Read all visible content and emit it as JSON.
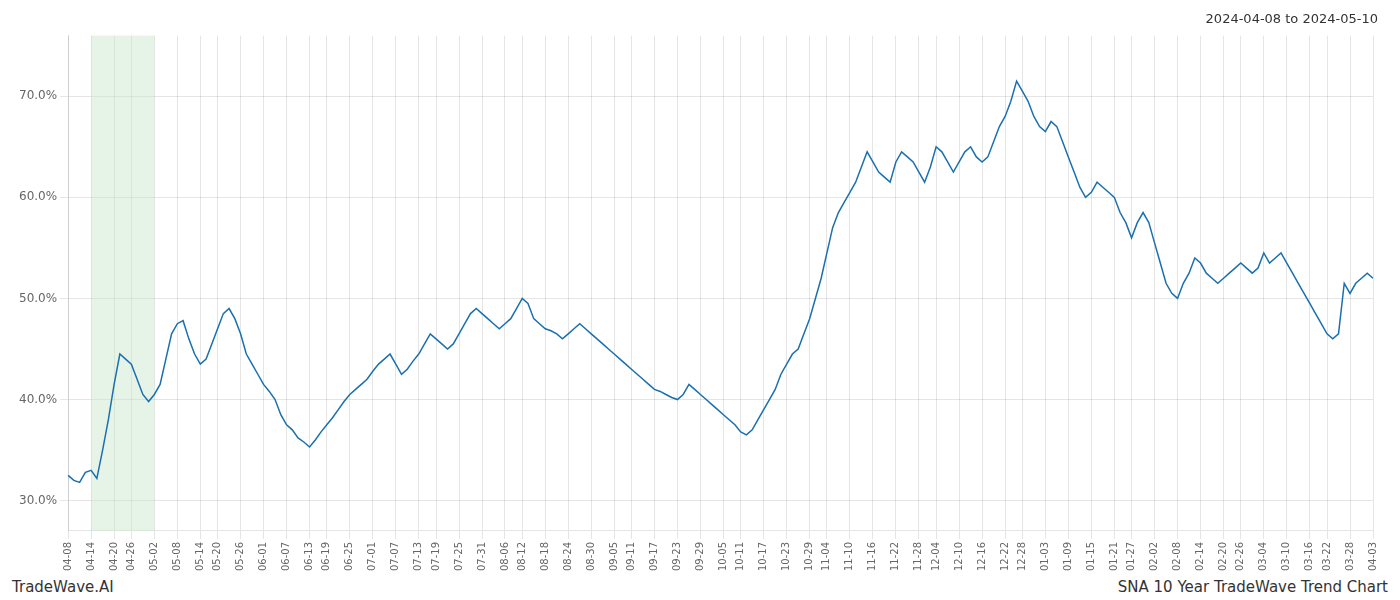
{
  "chart_data": {
    "type": "line",
    "title": "2024-04-08 to 2024-05-10",
    "annotations": [
      "TradeWave.AI",
      "SNA 10 Year TradeWave Trend Chart"
    ],
    "color": "#1a6faf",
    "grid": true,
    "ylim": [
      27.0,
      76.0
    ],
    "yticks": [
      {
        "value": 30.0,
        "label": "30.0%"
      },
      {
        "value": 40.0,
        "label": "40.0%"
      },
      {
        "value": 50.0,
        "label": "50.0%"
      },
      {
        "value": 60.0,
        "label": "60.0%"
      },
      {
        "value": 70.0,
        "label": "70.0%"
      }
    ],
    "shaded_region": {
      "from": "04-14",
      "to": "05-02",
      "color": "#c8e6c9"
    },
    "categories": [
      "04-08",
      null,
      null,
      null,
      "04-14",
      null,
      null,
      null,
      "04-20",
      null,
      null,
      "04-26",
      null,
      null,
      null,
      "05-02",
      null,
      null,
      null,
      "05-08",
      null,
      null,
      null,
      "05-14",
      null,
      null,
      "05-20",
      null,
      null,
      null,
      "05-26",
      null,
      null,
      null,
      "06-01",
      null,
      null,
      null,
      "06-07",
      null,
      null,
      null,
      "06-13",
      null,
      null,
      "06-19",
      null,
      null,
      null,
      "06-25",
      null,
      null,
      null,
      "07-01",
      null,
      null,
      null,
      "07-07",
      null,
      null,
      null,
      "07-13",
      null,
      null,
      "07-19",
      null,
      null,
      null,
      "07-25",
      null,
      null,
      null,
      "07-31",
      null,
      null,
      null,
      "08-06",
      null,
      null,
      "08-12",
      null,
      null,
      null,
      "08-18",
      null,
      null,
      null,
      "08-24",
      null,
      null,
      null,
      "08-30",
      null,
      null,
      null,
      "09-05",
      null,
      null,
      "09-11",
      null,
      null,
      null,
      "09-17",
      null,
      null,
      null,
      "09-23",
      null,
      null,
      null,
      "09-29",
      null,
      null,
      null,
      "10-05",
      null,
      null,
      "10-11",
      null,
      null,
      null,
      "10-17",
      null,
      null,
      null,
      "10-23",
      null,
      null,
      null,
      "10-29",
      null,
      null,
      "11-04",
      null,
      null,
      null,
      "11-10",
      null,
      null,
      null,
      "11-16",
      null,
      null,
      null,
      "11-22",
      null,
      null,
      null,
      "11-28",
      null,
      null,
      "12-04",
      null,
      null,
      null,
      "12-10",
      null,
      null,
      null,
      "12-16",
      null,
      null,
      null,
      "12-22",
      null,
      null,
      "12-28",
      null,
      null,
      null,
      "01-03",
      null,
      null,
      null,
      "01-09",
      null,
      null,
      null,
      "01-15",
      null,
      null,
      null,
      "01-21",
      null,
      null,
      "01-27",
      null,
      null,
      null,
      "02-02",
      null,
      null,
      null,
      "02-08",
      null,
      null,
      null,
      "02-14",
      null,
      null,
      null,
      "02-20",
      null,
      null,
      "02-26",
      null,
      null,
      null,
      "03-04",
      null,
      null,
      null,
      "03-10",
      null,
      null,
      null,
      "03-16",
      null,
      null,
      "03-22",
      null,
      null,
      null,
      "03-28",
      null,
      null,
      null,
      "04-03"
    ],
    "values": [
      32.5,
      32.0,
      31.8,
      32.8,
      33.0,
      32.2,
      35.0,
      38.0,
      41.5,
      44.5,
      44.0,
      43.5,
      42.0,
      40.5,
      39.8,
      40.5,
      41.5,
      44.0,
      46.5,
      47.5,
      47.8,
      46.0,
      44.5,
      43.5,
      44.0,
      45.5,
      47.0,
      48.5,
      49.0,
      48.0,
      46.5,
      44.5,
      43.5,
      42.5,
      41.5,
      40.8,
      40.0,
      38.5,
      37.5,
      37.0,
      36.2,
      35.8,
      35.3,
      36.0,
      36.8,
      37.5,
      38.2,
      39.0,
      39.8,
      40.5,
      41.0,
      41.5,
      42.0,
      42.8,
      43.5,
      44.0,
      44.5,
      43.5,
      42.5,
      43.0,
      43.8,
      44.5,
      45.5,
      46.5,
      46.0,
      45.5,
      45.0,
      45.5,
      46.5,
      47.5,
      48.5,
      49.0,
      48.5,
      48.0,
      47.5,
      47.0,
      47.5,
      48.0,
      49.0,
      50.0,
      49.5,
      48.0,
      47.5,
      47.0,
      46.8,
      46.5,
      46.0,
      46.5,
      47.0,
      47.5,
      47.0,
      46.5,
      46.0,
      45.5,
      45.0,
      44.5,
      44.0,
      43.5,
      43.0,
      42.5,
      42.0,
      41.5,
      41.0,
      40.8,
      40.5,
      40.2,
      40.0,
      40.5,
      41.5,
      41.0,
      40.5,
      40.0,
      39.5,
      39.0,
      38.5,
      38.0,
      37.5,
      36.8,
      36.5,
      37.0,
      38.0,
      39.0,
      40.0,
      41.0,
      42.5,
      43.5,
      44.5,
      45.0,
      46.5,
      48.0,
      50.0,
      52.0,
      54.5,
      57.0,
      58.5,
      59.5,
      60.5,
      61.5,
      63.0,
      64.5,
      63.5,
      62.5,
      62.0,
      61.5,
      63.5,
      64.5,
      64.0,
      63.5,
      62.5,
      61.5,
      63.0,
      65.0,
      64.5,
      63.5,
      62.5,
      63.5,
      64.5,
      65.0,
      64.0,
      63.5,
      64.0,
      65.5,
      67.0,
      68.0,
      69.5,
      71.5,
      70.5,
      69.5,
      68.0,
      67.0,
      66.5,
      67.5,
      67.0,
      65.5,
      64.0,
      62.5,
      61.0,
      60.0,
      60.5,
      61.5,
      61.0,
      60.5,
      60.0,
      58.5,
      57.5,
      56.0,
      57.5,
      58.5,
      57.5,
      55.5,
      53.5,
      51.5,
      50.5,
      50.0,
      51.5,
      52.5,
      54.0,
      53.5,
      52.5,
      52.0,
      51.5,
      52.0,
      52.5,
      53.0,
      53.5,
      53.0,
      52.5,
      53.0,
      54.5,
      53.5,
      54.0,
      54.5,
      53.5,
      52.5,
      51.5,
      50.5,
      49.5,
      48.5,
      47.5,
      46.5,
      46.0,
      46.5,
      51.5,
      50.5,
      51.5,
      52.0,
      52.5,
      52.0
    ]
  }
}
